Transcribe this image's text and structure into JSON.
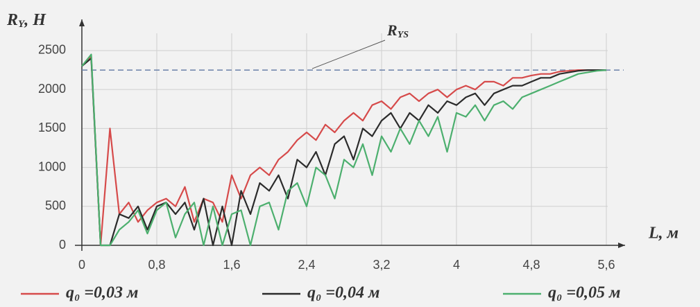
{
  "chart_data": {
    "type": "line",
    "ylabel": [
      "R",
      "Y",
      ", H"
    ],
    "xlabel": "L, м",
    "x": [
      0,
      0.1,
      0.2,
      0.3,
      0.4,
      0.5,
      0.6,
      0.7,
      0.8,
      0.9,
      1.0,
      1.1,
      1.2,
      1.3,
      1.4,
      1.5,
      1.6,
      1.7,
      1.8,
      1.9,
      2.0,
      2.1,
      2.2,
      2.3,
      2.4,
      2.5,
      2.6,
      2.7,
      2.8,
      2.9,
      3.0,
      3.1,
      3.2,
      3.3,
      3.4,
      3.5,
      3.6,
      3.7,
      3.8,
      3.9,
      4.0,
      4.1,
      4.2,
      4.3,
      4.4,
      4.5,
      4.6,
      4.7,
      4.8,
      4.9,
      5.0,
      5.1,
      5.2,
      5.3,
      5.4,
      5.5,
      5.6
    ],
    "series": [
      {
        "name": "q₀ =0,03 м",
        "color": "#d64a4a",
        "values": [
          2300,
          2420,
          0,
          1500,
          400,
          550,
          300,
          450,
          550,
          600,
          500,
          750,
          300,
          600,
          550,
          300,
          900,
          600,
          900,
          1000,
          900,
          1100,
          1200,
          1350,
          1450,
          1350,
          1550,
          1450,
          1600,
          1700,
          1600,
          1800,
          1850,
          1750,
          1900,
          1950,
          1850,
          1950,
          2000,
          1900,
          2000,
          2050,
          2000,
          2100,
          2100,
          2050,
          2150,
          2150,
          2180,
          2200,
          2200,
          2230,
          2240,
          2250,
          2250,
          2250,
          2250
        ]
      },
      {
        "name": "q₀ =0,04 м",
        "color": "#2b2b2b",
        "values": [
          2300,
          2400,
          0,
          0,
          400,
          350,
          500,
          200,
          500,
          550,
          400,
          550,
          200,
          600,
          0,
          500,
          0,
          700,
          400,
          800,
          700,
          900,
          600,
          1100,
          1000,
          1200,
          900,
          1300,
          1400,
          1100,
          1500,
          1400,
          1600,
          1700,
          1500,
          1700,
          1600,
          1800,
          1700,
          1850,
          1800,
          1900,
          1950,
          1800,
          1950,
          2000,
          2050,
          2050,
          2100,
          2150,
          2150,
          2200,
          2220,
          2240,
          2250,
          2250,
          2250
        ]
      },
      {
        "name": "q₀ =0,05 м",
        "color": "#4caf6e",
        "values": [
          2300,
          2450,
          0,
          0,
          200,
          300,
          450,
          150,
          450,
          550,
          100,
          400,
          550,
          0,
          500,
          0,
          400,
          450,
          0,
          500,
          550,
          200,
          700,
          800,
          500,
          1000,
          900,
          600,
          1100,
          1000,
          1300,
          900,
          1400,
          1200,
          1500,
          1300,
          1600,
          1400,
          1650,
          1200,
          1700,
          1650,
          1800,
          1600,
          1800,
          1850,
          1750,
          1900,
          1950,
          2000,
          2050,
          2100,
          2150,
          2200,
          2220,
          2240,
          2250
        ]
      }
    ],
    "reference_line": {
      "value": 2250,
      "label": [
        "R",
        "YS"
      ],
      "color": "#6a7fa8"
    },
    "xlim": [
      0,
      5.8
    ],
    "ylim": [
      0,
      2900
    ],
    "xticks": [
      0,
      {
        "value": 0.8,
        "label": "0,8"
      },
      {
        "value": 1.6,
        "label": "1,6"
      },
      {
        "value": 2.4,
        "label": "2,4"
      },
      {
        "value": 3.2,
        "label": "3,2"
      },
      {
        "value": 4,
        "label": "4"
      },
      {
        "value": 4.8,
        "label": "4,8"
      },
      {
        "value": 5.6,
        "label": "5,6"
      }
    ],
    "yticks": [
      0,
      500,
      1000,
      1500,
      2000,
      2500
    ],
    "grid": true
  }
}
